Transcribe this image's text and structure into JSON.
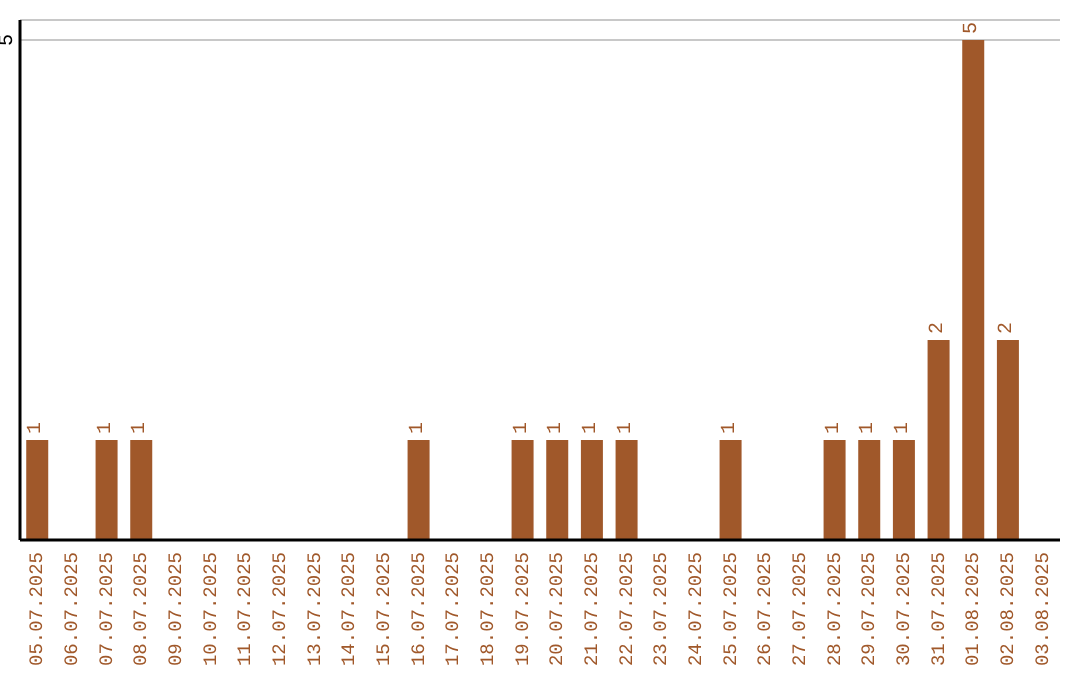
{
  "chart_data": {
    "type": "bar",
    "categories": [
      "05.07.2025",
      "06.07.2025",
      "07.07.2025",
      "08.07.2025",
      "09.07.2025",
      "10.07.2025",
      "11.07.2025",
      "12.07.2025",
      "13.07.2025",
      "14.07.2025",
      "15.07.2025",
      "16.07.2025",
      "17.07.2025",
      "18.07.2025",
      "19.07.2025",
      "20.07.2025",
      "21.07.2025",
      "22.07.2025",
      "23.07.2025",
      "24.07.2025",
      "25.07.2025",
      "26.07.2025",
      "27.07.2025",
      "28.07.2025",
      "29.07.2025",
      "30.07.2025",
      "31.07.2025",
      "01.08.2025",
      "02.08.2025",
      "03.08.2025"
    ],
    "values": [
      1,
      0,
      1,
      1,
      0,
      0,
      0,
      0,
      0,
      0,
      0,
      1,
      0,
      0,
      1,
      1,
      1,
      1,
      0,
      0,
      1,
      0,
      0,
      1,
      1,
      1,
      2,
      5,
      2,
      0
    ],
    "value_labels": [
      "1",
      null,
      "1",
      "1",
      null,
      null,
      null,
      null,
      null,
      null,
      null,
      "1",
      null,
      null,
      "1",
      "1",
      "1",
      "1",
      null,
      null,
      "1",
      null,
      null,
      "1",
      "1",
      "1",
      "2",
      "5",
      "2",
      null
    ],
    "color": "#a0582a",
    "ylim": [
      0,
      5.2
    ],
    "yticks": [
      5
    ],
    "grid": "y"
  }
}
